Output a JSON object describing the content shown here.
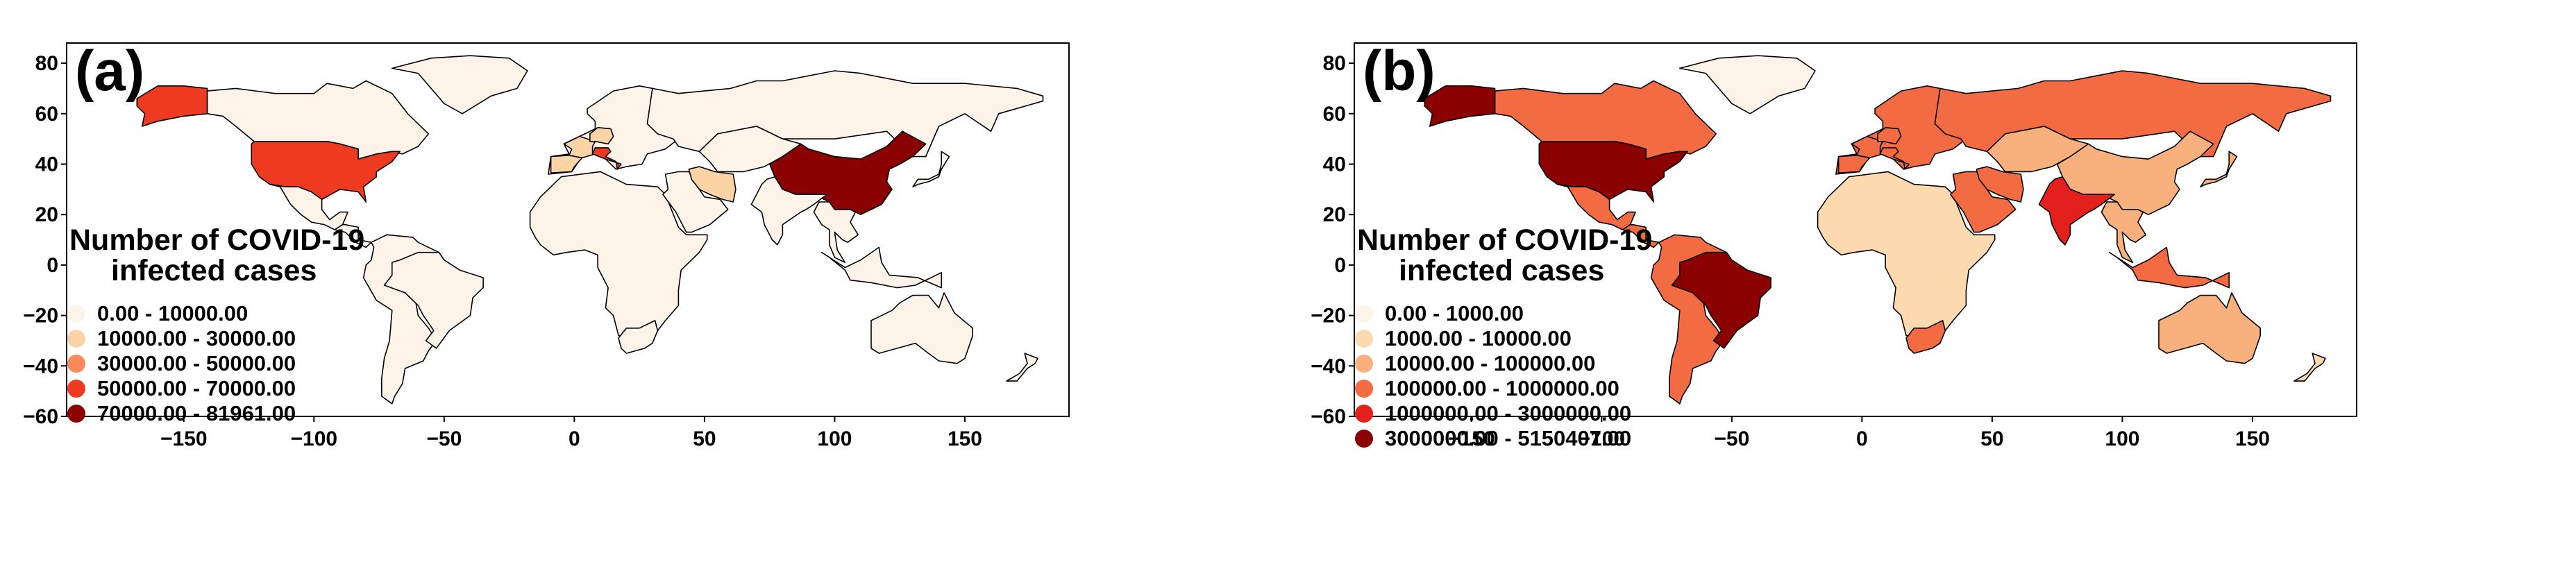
{
  "chart_data": [
    {
      "type": "choropleth",
      "panel": "(a)",
      "legend_title": [
        "Number of COVID-19",
        "infected cases"
      ],
      "legend": [
        {
          "label": "0.00 - 10000.00",
          "color": "#fef3e8"
        },
        {
          "label": "10000.00 - 30000.00",
          "color": "#fcd3a5"
        },
        {
          "label": "30000.00 - 50000.00",
          "color": "#f98a5c"
        },
        {
          "label": "50000.00 - 70000.00",
          "color": "#ee3a20"
        },
        {
          "label": "70000.00 - 81961.00",
          "color": "#8b0000"
        }
      ],
      "xlim": [
        -195,
        190
      ],
      "ylim": [
        -60,
        88
      ],
      "xticks": [
        -150,
        -100,
        -50,
        0,
        50,
        100,
        150
      ],
      "yticks": [
        80,
        60,
        40,
        20,
        0,
        -20,
        -40,
        -60
      ],
      "regions": [
        {
          "name": "Canada",
          "class": 0
        },
        {
          "name": "Alaska",
          "class": 3
        },
        {
          "name": "United States",
          "class": 3
        },
        {
          "name": "Mexico",
          "class": 0
        },
        {
          "name": "Central America",
          "class": 0
        },
        {
          "name": "South America",
          "class": 0
        },
        {
          "name": "Brazil",
          "class": 0
        },
        {
          "name": "Greenland",
          "class": 0
        },
        {
          "name": "Europe",
          "class": 0
        },
        {
          "name": "Spain",
          "class": 1
        },
        {
          "name": "France",
          "class": 1
        },
        {
          "name": "Germany",
          "class": 1
        },
        {
          "name": "Italy",
          "class": 3
        },
        {
          "name": "Russia",
          "class": 0
        },
        {
          "name": "Africa",
          "class": 0
        },
        {
          "name": "South Africa",
          "class": 0
        },
        {
          "name": "Middle East",
          "class": 0
        },
        {
          "name": "Iran",
          "class": 1
        },
        {
          "name": "Central Asia",
          "class": 0
        },
        {
          "name": "China",
          "class": 4
        },
        {
          "name": "India",
          "class": 0
        },
        {
          "name": "Southeast Asia",
          "class": 0
        },
        {
          "name": "Indonesia",
          "class": 0
        },
        {
          "name": "Japan",
          "class": 0
        },
        {
          "name": "Australia",
          "class": 0
        },
        {
          "name": "New Zealand",
          "class": 0
        }
      ]
    },
    {
      "type": "choropleth",
      "panel": "(b)",
      "legend_title": [
        "Number of COVID-19",
        "infected cases"
      ],
      "legend": [
        {
          "label": "0.00 - 1000.00",
          "color": "#fef3e8"
        },
        {
          "label": "1000.00 - 10000.00",
          "color": "#fdd9b0"
        },
        {
          "label": "10000.00 - 100000.00",
          "color": "#f8b17c"
        },
        {
          "label": "100000.00 - 1000000.00",
          "color": "#f26b43"
        },
        {
          "label": "1000000.00 - 3000000.00",
          "color": "#e3201b"
        },
        {
          "label": "3000000.00 - 5150407.00",
          "color": "#8b0000"
        }
      ],
      "xlim": [
        -195,
        190
      ],
      "ylim": [
        -60,
        88
      ],
      "xticks": [
        -150,
        -100,
        -50,
        0,
        50,
        100,
        150
      ],
      "yticks": [
        80,
        60,
        40,
        20,
        0,
        -20,
        -40,
        -60
      ],
      "regions": [
        {
          "name": "Canada",
          "class": 3
        },
        {
          "name": "Alaska",
          "class": 5
        },
        {
          "name": "United States",
          "class": 5
        },
        {
          "name": "Mexico",
          "class": 3
        },
        {
          "name": "Central America",
          "class": 3
        },
        {
          "name": "South America",
          "class": 3
        },
        {
          "name": "Brazil",
          "class": 5
        },
        {
          "name": "Greenland",
          "class": 0
        },
        {
          "name": "Europe",
          "class": 3
        },
        {
          "name": "Spain",
          "class": 3
        },
        {
          "name": "France",
          "class": 3
        },
        {
          "name": "Germany",
          "class": 3
        },
        {
          "name": "Italy",
          "class": 3
        },
        {
          "name": "Russia",
          "class": 3
        },
        {
          "name": "Africa",
          "class": 1
        },
        {
          "name": "South Africa",
          "class": 3
        },
        {
          "name": "Middle East",
          "class": 3
        },
        {
          "name": "Iran",
          "class": 3
        },
        {
          "name": "Central Asia",
          "class": 2
        },
        {
          "name": "China",
          "class": 2
        },
        {
          "name": "India",
          "class": 4
        },
        {
          "name": "Southeast Asia",
          "class": 2
        },
        {
          "name": "Indonesia",
          "class": 3
        },
        {
          "name": "Japan",
          "class": 2
        },
        {
          "name": "Australia",
          "class": 2
        },
        {
          "name": "New Zealand",
          "class": 1
        }
      ]
    }
  ]
}
